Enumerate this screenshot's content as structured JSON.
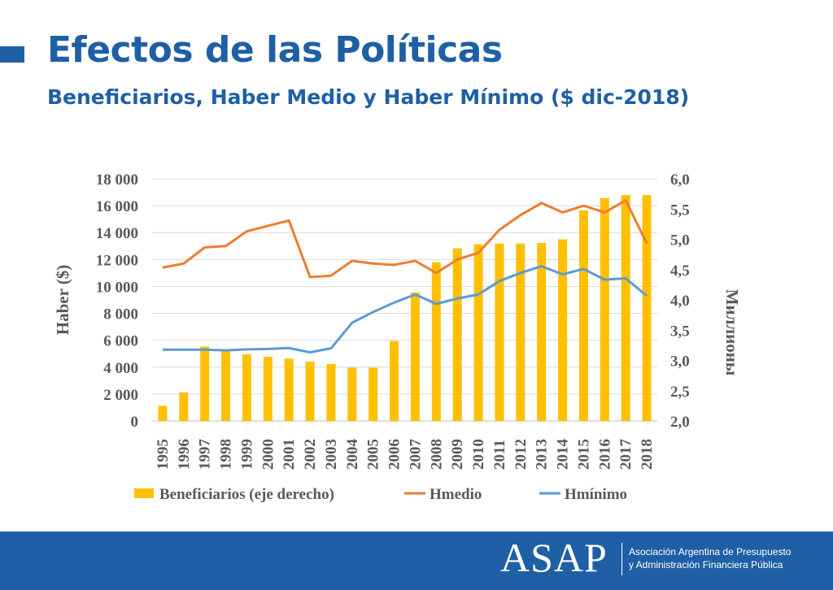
{
  "header": {
    "title": "Efectos de las Políticas",
    "subtitle": "Beneficiarios, Haber Medio y Haber Mínimo ($ dic-2018)"
  },
  "chart_data": {
    "type": "bar",
    "title": "",
    "categories": [
      "1995",
      "1996",
      "1997",
      "1998",
      "1999",
      "2000",
      "2001",
      "2002",
      "2003",
      "2004",
      "2005",
      "2006",
      "2007",
      "2008",
      "2009",
      "2010",
      "2011",
      "2012",
      "2013",
      "2014",
      "2015",
      "2016",
      "2017",
      "2018"
    ],
    "y_left": {
      "label": "Haber  ($)",
      "min": 0,
      "max": 18000,
      "ticks": [
        "0",
        "2 000",
        "4 000",
        "6 000",
        "8 000",
        "10 000",
        "12 000",
        "14 000",
        "16 000",
        "18 000"
      ]
    },
    "y_right": {
      "label": "Миллионы",
      "min": 2.0,
      "max": 6.0,
      "ticks": [
        "2,0",
        "2,5",
        "3,0",
        "3,5",
        "4,0",
        "4,5",
        "5,0",
        "5,5",
        "6,0"
      ]
    },
    "series": [
      {
        "name": "Beneficiarios (eje derecho)",
        "type": "bar",
        "axis": "right",
        "color": "#ffc000",
        "values": [
          2.25,
          2.47,
          3.23,
          3.15,
          3.1,
          3.06,
          3.03,
          2.98,
          2.94,
          2.88,
          2.88,
          3.32,
          4.12,
          4.62,
          4.85,
          4.92,
          4.93,
          4.93,
          4.94,
          5.0,
          5.48,
          5.68,
          5.73,
          5.73
        ]
      },
      {
        "name": "Hmedio",
        "type": "line",
        "axis": "left",
        "color": "#ed7d31",
        "values": [
          11400,
          11700,
          12900,
          13000,
          14100,
          14500,
          14900,
          10700,
          10800,
          11900,
          11700,
          11600,
          11900,
          11000,
          12000,
          12500,
          14200,
          15300,
          16200,
          15500,
          16000,
          15500,
          16400,
          13200
        ]
      },
      {
        "name": "Hmínimo",
        "type": "line",
        "axis": "left",
        "color": "#5b9bd5",
        "values": [
          5300,
          5300,
          5300,
          5250,
          5320,
          5350,
          5420,
          5100,
          5400,
          7300,
          8100,
          8800,
          9400,
          8700,
          9100,
          9400,
          10400,
          11000,
          11500,
          10900,
          11300,
          10500,
          10600,
          9300
        ]
      }
    ],
    "legend_position": "bottom",
    "grid": true
  },
  "footer": {
    "logo_text": "ASAP",
    "org_line1": "Asociación Argentina de Presupuesto",
    "org_line2": "y Administración Financiera Pública"
  }
}
